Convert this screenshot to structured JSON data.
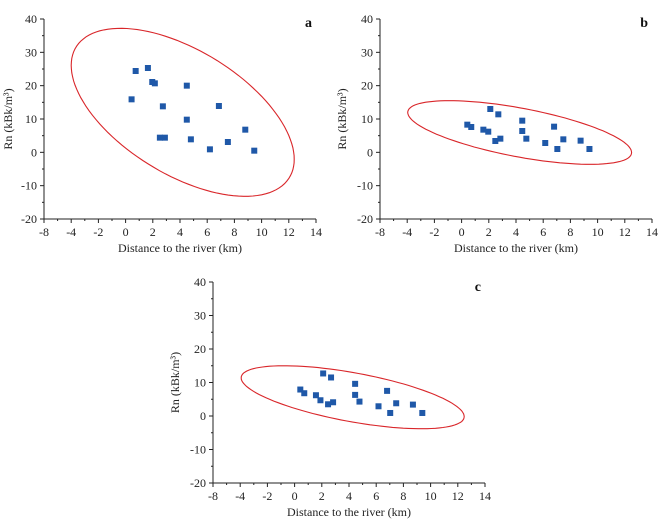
{
  "chart_data": [
    {
      "type": "scatter",
      "panel_label": "a",
      "title": "",
      "xlabel": "Distance to the river (km)",
      "ylabel": "Rn (kBk/m³)",
      "xlim": [
        -6,
        14
      ],
      "ylim": [
        -20,
        40
      ],
      "x_tick_labels": [
        "-8",
        "-4",
        "-2",
        "0",
        "2",
        "4",
        "6",
        "8",
        "10",
        "12",
        "14"
      ],
      "y_tick_labels": [
        "-20",
        "-10",
        "0",
        "10",
        "20",
        "30",
        "40"
      ],
      "grid": false,
      "points": [
        {
          "x": 0.74,
          "y": 24.4
        },
        {
          "x": 1.64,
          "y": 25.3
        },
        {
          "x": 1.96,
          "y": 21.1
        },
        {
          "x": 2.15,
          "y": 20.7
        },
        {
          "x": 4.5,
          "y": 20.0
        },
        {
          "x": 0.44,
          "y": 15.9
        },
        {
          "x": 2.74,
          "y": 13.8
        },
        {
          "x": 6.86,
          "y": 13.9
        },
        {
          "x": 4.5,
          "y": 9.8
        },
        {
          "x": 8.8,
          "y": 6.8
        },
        {
          "x": 2.52,
          "y": 4.4
        },
        {
          "x": 2.89,
          "y": 4.4
        },
        {
          "x": 4.8,
          "y": 3.9
        },
        {
          "x": 7.52,
          "y": 3.1
        },
        {
          "x": 6.2,
          "y": 0.9
        },
        {
          "x": 9.46,
          "y": 0.5
        }
      ],
      "confidence_ellipse": {
        "cx": 4.2,
        "cy": 12.0,
        "x_halfrange": 8.2,
        "y_halfrange": 25.2,
        "phase_deg": 124
      }
    },
    {
      "type": "scatter",
      "panel_label": "b",
      "title": "",
      "xlabel": "Distance to the river (km)",
      "ylabel": "Rn (kBk/m³)",
      "xlim": [
        -6,
        14
      ],
      "ylim": [
        -20,
        40
      ],
      "x_tick_labels": [
        "-8",
        "-4",
        "-2",
        "0",
        "2",
        "4",
        "6",
        "8",
        "10",
        "12",
        "14"
      ],
      "y_tick_labels": [
        "-20",
        "-10",
        "0",
        "10",
        "20",
        "30",
        "40"
      ],
      "grid": false,
      "points": [
        {
          "x": 0.42,
          "y": 8.3
        },
        {
          "x": 0.71,
          "y": 7.6
        },
        {
          "x": 1.6,
          "y": 6.8
        },
        {
          "x": 1.96,
          "y": 6.2
        },
        {
          "x": 2.11,
          "y": 13.0
        },
        {
          "x": 2.7,
          "y": 11.4
        },
        {
          "x": 2.48,
          "y": 3.4
        },
        {
          "x": 2.85,
          "y": 4.1
        },
        {
          "x": 4.46,
          "y": 9.5
        },
        {
          "x": 4.46,
          "y": 6.4
        },
        {
          "x": 4.76,
          "y": 4.1
        },
        {
          "x": 6.8,
          "y": 7.7
        },
        {
          "x": 6.15,
          "y": 2.8
        },
        {
          "x": 7.48,
          "y": 3.9
        },
        {
          "x": 7.04,
          "y": 1.0
        },
        {
          "x": 8.75,
          "y": 3.5
        },
        {
          "x": 9.4,
          "y": 1.0
        }
      ],
      "confidence_ellipse": {
        "cx": 4.27,
        "cy": 5.95,
        "x_halfrange": 8.23,
        "y_halfrange": 9.55,
        "phase_deg": 129
      }
    },
    {
      "type": "scatter",
      "panel_label": "c",
      "title": "",
      "xlabel": "Distance to the river (km)",
      "ylabel": "Rn (kBk/m³)",
      "xlim": [
        -6,
        14
      ],
      "ylim": [
        -20,
        40
      ],
      "x_tick_labels": [
        "-8",
        "-4",
        "-2",
        "0",
        "2",
        "4",
        "6",
        "8",
        "10",
        "12",
        "14"
      ],
      "y_tick_labels": [
        "-20",
        "-10",
        "0",
        "10",
        "20",
        "30",
        "40"
      ],
      "grid": false,
      "points": [
        {
          "x": 0.42,
          "y": 7.9
        },
        {
          "x": 0.71,
          "y": 6.8
        },
        {
          "x": 1.57,
          "y": 6.2
        },
        {
          "x": 1.9,
          "y": 4.7
        },
        {
          "x": 2.1,
          "y": 12.7
        },
        {
          "x": 2.68,
          "y": 11.5
        },
        {
          "x": 2.46,
          "y": 3.5
        },
        {
          "x": 2.83,
          "y": 4.1
        },
        {
          "x": 4.45,
          "y": 9.6
        },
        {
          "x": 4.45,
          "y": 6.3
        },
        {
          "x": 4.77,
          "y": 4.3
        },
        {
          "x": 6.8,
          "y": 7.5
        },
        {
          "x": 6.17,
          "y": 2.9
        },
        {
          "x": 7.47,
          "y": 3.8
        },
        {
          "x": 7.03,
          "y": 0.9
        },
        {
          "x": 8.7,
          "y": 3.4
        },
        {
          "x": 9.39,
          "y": 0.9
        }
      ],
      "confidence_ellipse": {
        "cx": 4.27,
        "cy": 5.6,
        "x_halfrange": 8.2,
        "y_halfrange": 9.4,
        "phase_deg": 128
      }
    }
  ]
}
